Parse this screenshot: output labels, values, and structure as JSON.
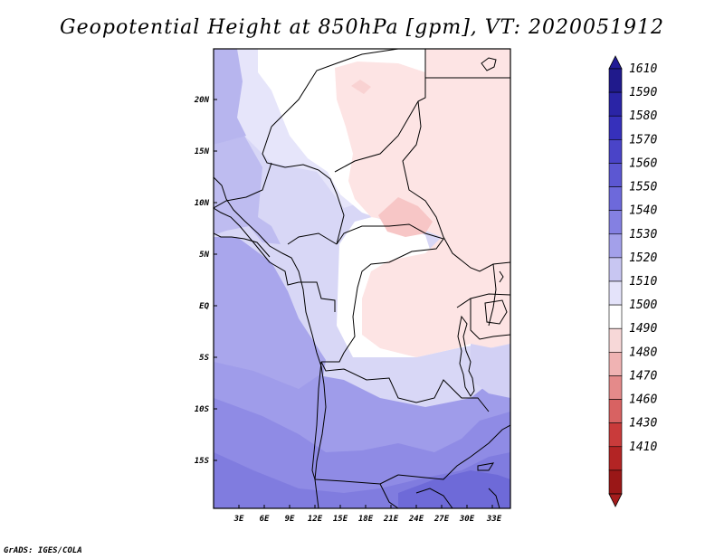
{
  "title": "Geopotential Height at 850hPa [gpm], VT: 2020051912",
  "credit": "GrADS: IGES/COLA",
  "map": {
    "lat_ticks": [
      "20N",
      "15N",
      "10N",
      "5N",
      "EQ",
      "5S",
      "10S",
      "15S"
    ],
    "lon_ticks": [
      "3E",
      "6E",
      "9E",
      "12E",
      "15E",
      "18E",
      "21E",
      "24E",
      "27E",
      "30E",
      "33E"
    ]
  },
  "colorbar": {
    "levels": [
      "1610",
      "1590",
      "1580",
      "1570",
      "1560",
      "1550",
      "1540",
      "1530",
      "1520",
      "1510",
      "1500",
      "1490",
      "1480",
      "1470",
      "1460",
      "1430",
      "1410"
    ],
    "colors": [
      "#201a8c",
      "#2a24a6",
      "#3630bb",
      "#4a44c8",
      "#5c57d2",
      "#6d69db",
      "#8480e2",
      "#a3a0ea",
      "#c8c6f2",
      "#e4e3fa",
      "#ffffff",
      "#f7d8d8",
      "#f0b3b3",
      "#e48a8a",
      "#d86262",
      "#c93b3b",
      "#b32424",
      "#9a1717"
    ],
    "accent_top": "#221c96",
    "accent_bottom": "#a51c1c"
  }
}
